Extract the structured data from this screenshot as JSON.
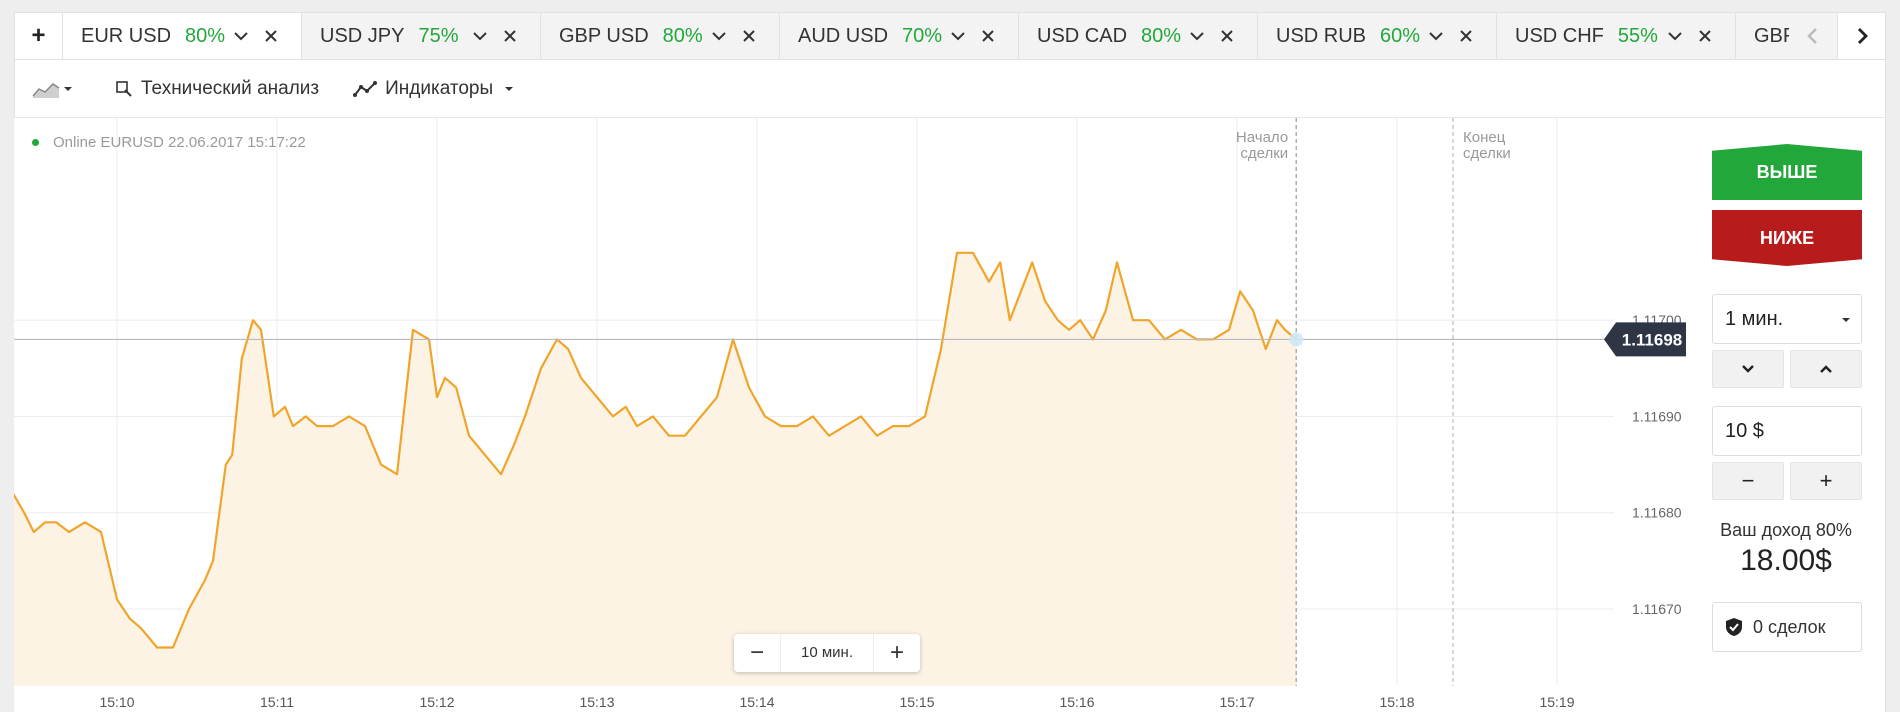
{
  "tabs": {
    "add_label": "+",
    "items": [
      {
        "pair": "EUR USD",
        "pct": "80%",
        "active": true
      },
      {
        "pair": "USD JPY",
        "pct": "75%"
      },
      {
        "pair": "GBP USD",
        "pct": "80%"
      },
      {
        "pair": "AUD USD",
        "pct": "70%"
      },
      {
        "pair": "USD CAD",
        "pct": "80%"
      },
      {
        "pair": "USD RUB",
        "pct": "60%"
      },
      {
        "pair": "USD CHF",
        "pct": "55%"
      }
    ],
    "partial_label": "GBP USD"
  },
  "toolbar": {
    "tech_label": "Технический анализ",
    "indicators_label": "Индикаторы"
  },
  "chart": {
    "status": "Online EURUSD 22.06.2017 15:17:22",
    "start_label_1": "Начало",
    "start_label_2": "сделки",
    "end_label_1": "Конец",
    "end_label_2": "сделки",
    "current_price": "1.11698",
    "zoom_label": "10 мин.",
    "zoom_minus": "−",
    "zoom_plus": "+",
    "line_color": "#f0a52a",
    "fill_color": "#fdf3e5"
  },
  "chart_data": {
    "type": "line",
    "x_ticks": [
      "15:10",
      "15:11",
      "15:12",
      "15:13",
      "15:14",
      "15:15",
      "15:16",
      "15:17",
      "15:18",
      "15:19"
    ],
    "y_ticks": [
      "1.11670",
      "1.11680",
      "1.11690",
      "1.11700"
    ],
    "ylim": [
      1.11662,
      1.11721
    ],
    "x_start_min": 9.35,
    "trade_start_min": 17.37,
    "trade_end_min": 18.35,
    "series": [
      {
        "x": [
          9.35,
          9.42,
          9.48,
          9.55,
          9.62,
          9.7,
          9.8,
          9.9,
          10.0,
          10.08,
          10.15,
          10.25,
          10.3,
          10.35,
          10.45,
          10.55,
          10.6,
          10.68,
          10.72,
          10.78,
          10.85,
          10.9,
          10.98,
          11.05,
          11.1,
          11.18,
          11.25,
          11.35,
          11.45,
          11.55,
          11.65,
          11.75,
          11.85,
          11.95,
          12.0,
          12.05,
          12.12,
          12.2,
          12.3,
          12.4,
          12.48,
          12.55,
          12.65,
          12.75,
          12.82,
          12.9,
          13.0,
          13.1,
          13.18,
          13.25,
          13.35,
          13.45,
          13.55,
          13.65,
          13.75,
          13.85,
          13.95,
          14.05,
          14.15,
          14.25,
          14.35,
          14.45,
          14.55,
          14.65,
          14.75,
          14.85,
          14.95,
          15.05,
          15.15,
          15.25,
          15.35,
          15.45,
          15.52,
          15.58,
          15.65,
          15.72,
          15.8,
          15.88,
          15.95,
          16.02,
          16.1,
          16.18,
          16.25,
          16.35,
          16.45,
          16.55,
          16.65,
          16.75,
          16.85,
          16.95,
          17.02,
          17.1,
          17.18,
          17.25,
          17.3,
          17.37
        ],
        "y": [
          1.11682,
          1.1168,
          1.11678,
          1.11679,
          1.11679,
          1.11678,
          1.11679,
          1.11678,
          1.11671,
          1.11669,
          1.11668,
          1.11666,
          1.11666,
          1.11666,
          1.1167,
          1.11673,
          1.11675,
          1.11685,
          1.11686,
          1.11696,
          1.117,
          1.11699,
          1.1169,
          1.11691,
          1.11689,
          1.1169,
          1.11689,
          1.11689,
          1.1169,
          1.11689,
          1.11685,
          1.11684,
          1.11699,
          1.11698,
          1.11692,
          1.11694,
          1.11693,
          1.11688,
          1.11686,
          1.11684,
          1.11687,
          1.1169,
          1.11695,
          1.11698,
          1.11697,
          1.11694,
          1.11692,
          1.1169,
          1.11691,
          1.11689,
          1.1169,
          1.11688,
          1.11688,
          1.1169,
          1.11692,
          1.11698,
          1.11693,
          1.1169,
          1.11689,
          1.11689,
          1.1169,
          1.11688,
          1.11689,
          1.1169,
          1.11688,
          1.11689,
          1.11689,
          1.1169,
          1.11697,
          1.11707,
          1.11707,
          1.11704,
          1.11706,
          1.117,
          1.11703,
          1.11706,
          1.11702,
          1.117,
          1.11699,
          1.117,
          1.11698,
          1.11701,
          1.11706,
          1.117,
          1.117,
          1.11698,
          1.11699,
          1.11698,
          1.11698,
          1.11699,
          1.11703,
          1.11701,
          1.11697,
          1.117,
          1.11699,
          1.11698
        ]
      }
    ]
  },
  "panel": {
    "up_label": "ВЫШЕ",
    "down_label": "НИЖЕ",
    "time_value": "1 мин.",
    "amount_value": "10 $",
    "minus_label": "−",
    "plus_label": "+",
    "income_label": "Ваш доход 80%",
    "income_value": "18.00$",
    "deals_label": "0 сделок",
    "up_color": "#22a83a",
    "down_color": "#b81b1b"
  }
}
